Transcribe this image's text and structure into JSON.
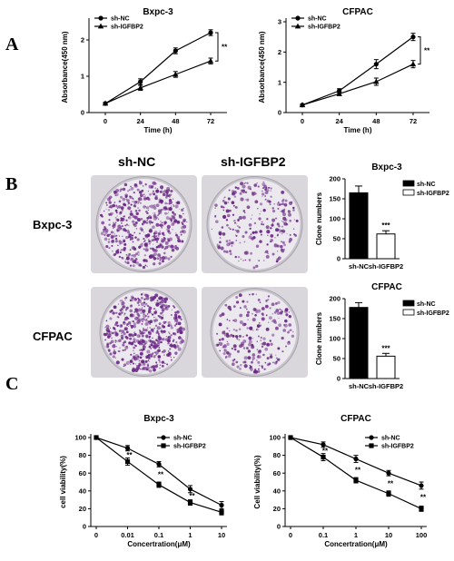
{
  "panels": {
    "a": "A",
    "b": "B",
    "c": "C"
  },
  "colors": {
    "black": "#000000",
    "white": "#ffffff",
    "colony": "#6b2a86",
    "dish_bg": "#d9d6dc",
    "well": "#ece9ee"
  },
  "section_b": {
    "col_headers": [
      "sh-NC",
      "sh-IGFBP2"
    ],
    "row_headers": [
      "Bxpc-3",
      "CFPAC"
    ]
  },
  "chart_data": [
    {
      "id": "a1",
      "type": "line",
      "title": "Bxpc-3",
      "xlabel": "Time (h)",
      "ylabel": "Absorbance(450 nm)",
      "x": [
        0,
        24,
        48,
        72
      ],
      "xticks": [
        "0",
        "24",
        "48",
        "72"
      ],
      "ylim": [
        0,
        2.5
      ],
      "yticks": [
        0,
        1,
        2
      ],
      "series": [
        {
          "name": "sh-NC",
          "marker": "circle",
          "values": [
            0.25,
            0.85,
            1.7,
            2.2
          ],
          "errors": [
            0.03,
            0.08,
            0.08,
            0.08
          ]
        },
        {
          "name": "sh-IGFBP2",
          "marker": "triangle",
          "values": [
            0.25,
            0.68,
            1.05,
            1.42
          ],
          "errors": [
            0.03,
            0.07,
            0.08,
            0.08
          ]
        }
      ],
      "annotations": [
        "**"
      ],
      "legend": "top-left"
    },
    {
      "id": "a2",
      "type": "line",
      "title": "CFPAC",
      "xlabel": "Time (h)",
      "ylabel": "Absorbance(450 nm)",
      "x": [
        0,
        24,
        48,
        72
      ],
      "xticks": [
        "0",
        "24",
        "48",
        "72"
      ],
      "ylim": [
        0,
        3
      ],
      "yticks": [
        0,
        1,
        2,
        3
      ],
      "series": [
        {
          "name": "sh-NC",
          "marker": "circle",
          "values": [
            0.25,
            0.72,
            1.6,
            2.5
          ],
          "errors": [
            0.03,
            0.07,
            0.15,
            0.12
          ]
        },
        {
          "name": "sh-IGFBP2",
          "marker": "triangle",
          "values": [
            0.25,
            0.62,
            1.02,
            1.6
          ],
          "errors": [
            0.03,
            0.06,
            0.12,
            0.12
          ]
        }
      ],
      "annotations": [
        "**"
      ],
      "legend": "top-left"
    },
    {
      "id": "b1",
      "type": "bar",
      "title": "Bxpc-3",
      "ylabel": "Clone numbers",
      "categories": [
        "sh-NC",
        "sh-IGFBP2"
      ],
      "values": [
        165,
        62
      ],
      "errors": [
        17,
        8
      ],
      "fills": [
        "#000000",
        "#ffffff"
      ],
      "ylim": [
        0,
        200
      ],
      "yticks": [
        0,
        50,
        100,
        150,
        200
      ],
      "annotations": [
        "***"
      ],
      "legend": "top-right"
    },
    {
      "id": "b2",
      "type": "bar",
      "title": "CFPAC",
      "ylabel": "Clone numbers",
      "categories": [
        "sh-NC",
        "sh-IGFBP2"
      ],
      "values": [
        178,
        56
      ],
      "errors": [
        12,
        7
      ],
      "fills": [
        "#000000",
        "#ffffff"
      ],
      "ylim": [
        0,
        200
      ],
      "yticks": [
        0,
        50,
        100,
        150,
        200
      ],
      "annotations": [
        "***"
      ],
      "legend": "top-right"
    },
    {
      "id": "c1",
      "type": "line",
      "title": "Bxpc-3",
      "xlabel": "Concertration(μM)",
      "ylabel": "cell viability(%)",
      "x": [
        "0",
        "0.01",
        "0.1",
        "1",
        "10"
      ],
      "xticks": [
        "0",
        "0.01",
        "0.1",
        "1",
        "10"
      ],
      "ylim": [
        0,
        100
      ],
      "yticks": [
        0,
        20,
        40,
        60,
        80,
        100
      ],
      "series": [
        {
          "name": "sh-NC",
          "marker": "circle",
          "values": [
            100,
            88,
            70,
            42,
            24
          ],
          "errors": [
            0,
            3,
            3,
            4,
            4
          ]
        },
        {
          "name": "sh-IGFBP2",
          "marker": "square",
          "values": [
            100,
            73,
            47,
            27,
            16
          ],
          "errors": [
            0,
            4,
            3,
            3,
            3
          ]
        }
      ],
      "annotations": [
        "**",
        "**",
        "**"
      ],
      "legend": "top-right"
    },
    {
      "id": "c2",
      "type": "line",
      "title": "CFPAC",
      "xlabel": "Concertration(μM)",
      "ylabel": "Cell viability(%)",
      "x": [
        "0",
        "0.1",
        "1",
        "10",
        "100"
      ],
      "xticks": [
        "0",
        "0.1",
        "1",
        "10",
        "100"
      ],
      "ylim": [
        0,
        100
      ],
      "yticks": [
        0,
        20,
        40,
        60,
        80,
        100
      ],
      "series": [
        {
          "name": "sh-NC",
          "marker": "circle",
          "values": [
            100,
            92,
            76,
            60,
            46
          ],
          "errors": [
            0,
            3,
            4,
            3,
            4
          ]
        },
        {
          "name": "sh-IGFBP2",
          "marker": "square",
          "values": [
            100,
            78,
            52,
            37,
            20
          ],
          "errors": [
            0,
            4,
            3,
            3,
            3
          ]
        }
      ],
      "annotations": [
        "**",
        "**",
        "**",
        "**"
      ],
      "legend": "top-right"
    }
  ]
}
